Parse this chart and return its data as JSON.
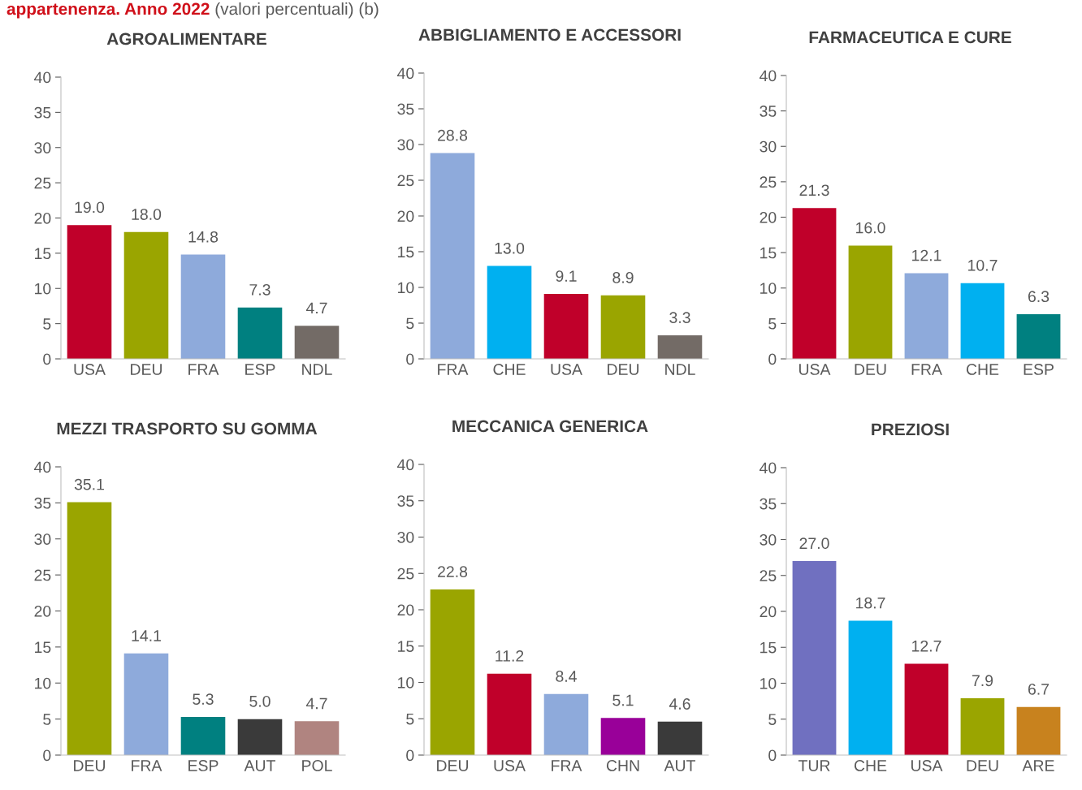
{
  "chart_data": [
    {
      "type": "bar",
      "title": "AGROALIMENTARE",
      "annotations": [
        "appartenenza. Anno 2022",
        "(valori percentuali) (b)"
      ],
      "categories": [
        "USA",
        "DEU",
        "FRA",
        "ESP",
        "NDL"
      ],
      "values": [
        19.0,
        18.0,
        14.8,
        7.3,
        4.7
      ],
      "value_labels": [
        "19.0",
        "18.0",
        "14.8",
        "7.3",
        "4.7"
      ],
      "colors": [
        "#c0002a",
        "#9aa500",
        "#8eaadb",
        "#008080",
        "#736b66"
      ],
      "ylim": [
        0,
        40
      ],
      "yticks": [
        0,
        5,
        10,
        15,
        20,
        25,
        30,
        35,
        40
      ],
      "grid": false,
      "legend": false
    },
    {
      "type": "bar",
      "title": "ABBIGLIAMENTO E ACCESSORI",
      "categories": [
        "FRA",
        "CHE",
        "USA",
        "DEU",
        "NDL"
      ],
      "values": [
        28.8,
        13.0,
        9.1,
        8.9,
        3.3
      ],
      "value_labels": [
        "28.8",
        "13.0",
        "9.1",
        "8.9",
        "3.3"
      ],
      "colors": [
        "#8eaadb",
        "#00b0f0",
        "#c0002a",
        "#9aa500",
        "#736b66"
      ],
      "ylim": [
        0,
        40
      ],
      "yticks": [
        0,
        5,
        10,
        15,
        20,
        25,
        30,
        35,
        40
      ],
      "grid": false,
      "legend": false
    },
    {
      "type": "bar",
      "title": "FARMACEUTICA E CURE",
      "categories": [
        "USA",
        "DEU",
        "FRA",
        "CHE",
        "ESP"
      ],
      "values": [
        21.3,
        16.0,
        12.1,
        10.7,
        6.3
      ],
      "value_labels": [
        "21.3",
        "16.0",
        "12.1",
        "10.7",
        "6.3"
      ],
      "colors": [
        "#c0002a",
        "#9aa500",
        "#8eaadb",
        "#00b0f0",
        "#008080"
      ],
      "ylim": [
        0,
        40
      ],
      "yticks": [
        0,
        5,
        10,
        15,
        20,
        25,
        30,
        35,
        40
      ],
      "grid": false,
      "legend": false
    },
    {
      "type": "bar",
      "title": "MEZZI TRASPORTO SU GOMMA",
      "categories": [
        "DEU",
        "FRA",
        "ESP",
        "AUT",
        "POL"
      ],
      "values": [
        35.1,
        14.1,
        5.3,
        5.0,
        4.7
      ],
      "value_labels": [
        "35.1",
        "14.1",
        "5.3",
        "5.0",
        "4.7"
      ],
      "colors": [
        "#9aa500",
        "#8eaadb",
        "#008080",
        "#3a3a3a",
        "#b08480"
      ],
      "ylim": [
        0,
        40
      ],
      "yticks": [
        0,
        5,
        10,
        15,
        20,
        25,
        30,
        35,
        40
      ],
      "grid": false,
      "legend": false
    },
    {
      "type": "bar",
      "title": "MECCANICA GENERICA",
      "categories": [
        "DEU",
        "USA",
        "FRA",
        "CHN",
        "AUT"
      ],
      "values": [
        22.8,
        11.2,
        8.4,
        5.1,
        4.6
      ],
      "value_labels": [
        "22.8",
        "11.2",
        "8.4",
        "5.1",
        "4.6"
      ],
      "colors": [
        "#9aa500",
        "#c0002a",
        "#8eaadb",
        "#990099",
        "#3a3a3a"
      ],
      "ylim": [
        0,
        40
      ],
      "yticks": [
        0,
        5,
        10,
        15,
        20,
        25,
        30,
        35,
        40
      ],
      "grid": false,
      "legend": false
    },
    {
      "type": "bar",
      "title": "PREZIOSI",
      "categories": [
        "TUR",
        "CHE",
        "USA",
        "DEU",
        "ARE"
      ],
      "values": [
        27.0,
        18.7,
        12.7,
        7.9,
        6.7
      ],
      "value_labels": [
        "27.0",
        "18.7",
        "12.7",
        "7.9",
        "6.7"
      ],
      "colors": [
        "#7070c0",
        "#00b0f0",
        "#c0002a",
        "#9aa500",
        "#c8821e"
      ],
      "ylim": [
        0,
        40
      ],
      "yticks": [
        0,
        5,
        10,
        15,
        20,
        25,
        30,
        35,
        40
      ],
      "grid": false,
      "legend": false
    }
  ]
}
